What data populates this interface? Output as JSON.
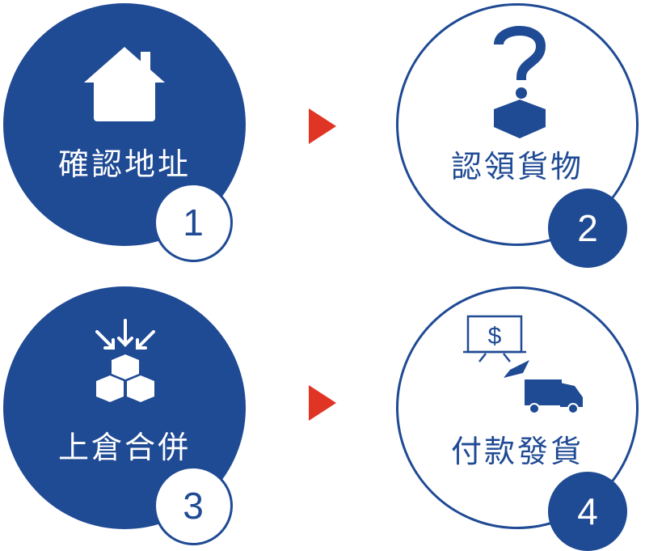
{
  "colors": {
    "primary": "#1f4a94",
    "arrow": "#e03524",
    "background": "#ffffff"
  },
  "steps": [
    {
      "number": "1",
      "label": "確認地址",
      "icon": "house-icon"
    },
    {
      "number": "2",
      "label": "認領貨物",
      "icon": "question-box-icon"
    },
    {
      "number": "3",
      "label": "上倉合併",
      "icon": "merge-boxes-icon"
    },
    {
      "number": "4",
      "label": "付款發貨",
      "icon": "payment-truck-icon"
    }
  ]
}
